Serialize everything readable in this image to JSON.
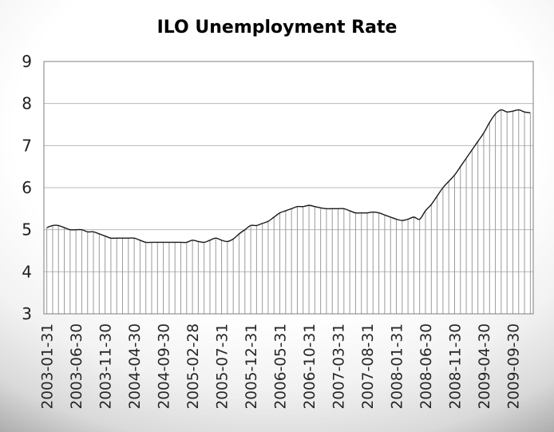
{
  "chart_data": {
    "type": "line",
    "title": "ILO Unemployment Rate",
    "xlabel": "",
    "ylabel": "",
    "ylim": [
      3,
      9
    ],
    "ytick_step": 1,
    "xtick_every": 5,
    "grid": "horizontal",
    "legend": "none",
    "style": {
      "smoothed_line": true,
      "drop_lines": true,
      "x_labels_rotated_90": true
    },
    "colors": {
      "line": "#1a1a1a",
      "drop_line": "#9b9b9b",
      "gridline": "#b8b8b8",
      "plot_border": "#7f7f7f",
      "text": "#262626",
      "plot_fill": "#ffffff"
    },
    "x": [
      "2003-01-31",
      "2003-02-28",
      "2003-03-31",
      "2003-04-30",
      "2003-05-31",
      "2003-06-30",
      "2003-07-31",
      "2003-08-31",
      "2003-09-30",
      "2003-10-31",
      "2003-11-30",
      "2003-12-31",
      "2004-01-31",
      "2004-02-29",
      "2004-03-31",
      "2004-04-30",
      "2004-05-31",
      "2004-06-30",
      "2004-07-31",
      "2004-08-31",
      "2004-09-30",
      "2004-10-31",
      "2004-11-30",
      "2004-12-31",
      "2005-01-31",
      "2005-02-28",
      "2005-03-31",
      "2005-04-30",
      "2005-05-31",
      "2005-06-30",
      "2005-07-31",
      "2005-08-31",
      "2005-09-30",
      "2005-10-31",
      "2005-11-30",
      "2005-12-31",
      "2006-01-31",
      "2006-02-28",
      "2006-03-31",
      "2006-04-30",
      "2006-05-31",
      "2006-06-30",
      "2006-07-31",
      "2006-08-31",
      "2006-09-30",
      "2006-10-31",
      "2006-11-30",
      "2006-12-31",
      "2007-01-31",
      "2007-02-28",
      "2007-03-31",
      "2007-04-30",
      "2007-05-31",
      "2007-06-30",
      "2007-07-31",
      "2007-08-31",
      "2007-09-30",
      "2007-10-31",
      "2007-11-30",
      "2007-12-31",
      "2008-01-31",
      "2008-02-29",
      "2008-03-31",
      "2008-04-30",
      "2008-05-31",
      "2008-06-30",
      "2008-07-31",
      "2008-08-31",
      "2008-09-30",
      "2008-10-31",
      "2008-11-30",
      "2008-12-31",
      "2009-01-31",
      "2009-02-28",
      "2009-03-31",
      "2009-04-30",
      "2009-05-31",
      "2009-06-30",
      "2009-07-31",
      "2009-08-31",
      "2009-09-30",
      "2009-10-31",
      "2009-11-30",
      "2009-12-31"
    ],
    "values": [
      5.05,
      5.1,
      5.1,
      5.05,
      5.0,
      5.0,
      5.0,
      4.95,
      4.95,
      4.9,
      4.85,
      4.8,
      4.8,
      4.8,
      4.8,
      4.8,
      4.75,
      4.7,
      4.7,
      4.7,
      4.7,
      4.7,
      4.7,
      4.7,
      4.7,
      4.75,
      4.72,
      4.7,
      4.75,
      4.8,
      4.75,
      4.72,
      4.78,
      4.9,
      5.0,
      5.1,
      5.1,
      5.15,
      5.2,
      5.3,
      5.4,
      5.45,
      5.5,
      5.55,
      5.55,
      5.58,
      5.55,
      5.52,
      5.5,
      5.5,
      5.5,
      5.5,
      5.45,
      5.4,
      5.4,
      5.4,
      5.42,
      5.4,
      5.35,
      5.3,
      5.25,
      5.22,
      5.25,
      5.3,
      5.25,
      5.45,
      5.6,
      5.8,
      6.0,
      6.15,
      6.3,
      6.5,
      6.7,
      6.9,
      7.1,
      7.3,
      7.55,
      7.75,
      7.85,
      7.8,
      7.82,
      7.85,
      7.8,
      7.78
    ],
    "y_tick_labels": [
      "9",
      "8",
      "7",
      "6",
      "5",
      "4",
      "3"
    ],
    "x_tick_labels_shown": [
      "2003-01-31",
      "2003-06-30",
      "2003-11-30",
      "2004-04-30",
      "2004-09-30",
      "2005-02-28",
      "2005-07-31",
      "2005-12-31",
      "2006-05-31",
      "2006-10-31",
      "2007-03-31",
      "2007-08-31",
      "2008-01-31",
      "2008-06-30",
      "2008-11-30",
      "2009-04-30",
      "2009-09-30"
    ]
  }
}
